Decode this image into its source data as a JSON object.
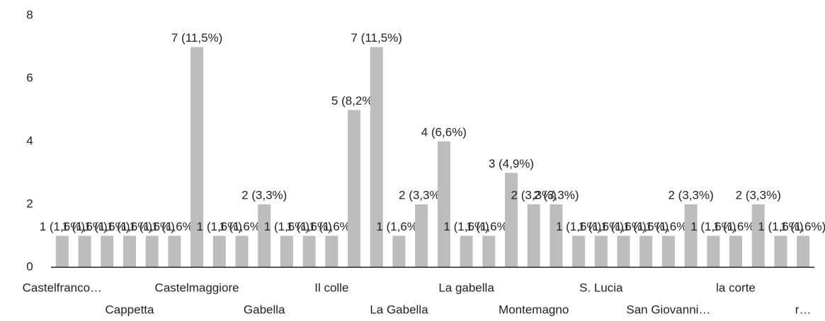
{
  "chart_data": {
    "type": "bar",
    "categories": [
      "Castelfranco…",
      null,
      null,
      "Cappetta",
      null,
      null,
      "Castelmaggiore",
      null,
      null,
      "Gabella",
      null,
      null,
      "Il colle",
      null,
      null,
      "La Gabella",
      null,
      null,
      "La gabella",
      null,
      null,
      "Montemagno",
      null,
      null,
      "S. Lucia",
      null,
      null,
      "San Giovanni…",
      null,
      null,
      "la corte",
      null,
      null,
      "r…"
    ],
    "values": [
      1,
      1,
      1,
      1,
      1,
      1,
      7,
      1,
      1,
      2,
      1,
      1,
      1,
      5,
      7,
      1,
      2,
      4,
      1,
      1,
      3,
      2,
      2,
      1,
      1,
      1,
      1,
      1,
      2,
      1,
      1,
      2,
      1,
      1
    ],
    "value_labels": [
      "1 (1,6%)",
      "1 (1,6%)",
      "1 (1,6%)",
      "1 (1,6%)",
      "1 (1,6%)",
      "1 (1,6%)",
      "7 (11,5%)",
      "1 (1,6%)",
      "1 (1,6%)",
      "2 (3,3%)",
      "1 (1,6%)",
      "1 (1,6%)",
      "1 (1,6%)",
      "5 (8,2%)",
      "7 (11,5%)",
      "1 (1,6%)",
      "2 (3,3%)",
      "4 (6,6%)",
      "1 (1,6%)",
      "1 (1,6%)",
      "3 (4,9%)",
      "2 (3,3%)",
      "2 (3,3%)",
      "1 (1,6%)",
      "1 (1,6%)",
      "1 (1,6%)",
      "1 (1,6%)",
      "1 (1,6%)",
      "2 (3,3%)",
      "1 (1,6%)",
      "1 (1,6%)",
      "2 (3,3%)",
      "1 (1,6%)",
      "1 (1,6%)"
    ],
    "color": "#bdbdbd",
    "ylim": [
      0,
      8
    ],
    "yticks": [
      0,
      2,
      4,
      6,
      8
    ],
    "grid": false
  }
}
